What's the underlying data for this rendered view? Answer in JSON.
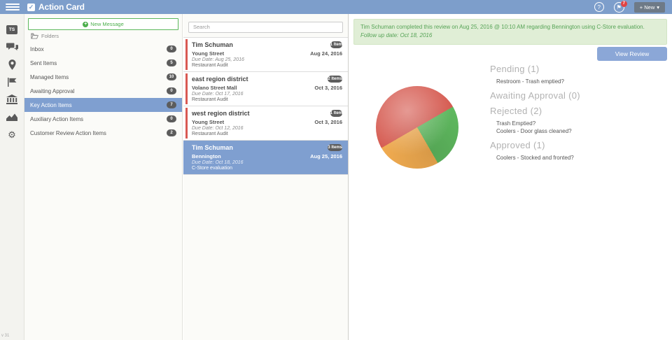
{
  "header": {
    "app_title": "Action Card",
    "new_button_label": "+ New",
    "notification_count": "7"
  },
  "icons": {
    "check": "✓",
    "help": "?",
    "flag": "⚑",
    "gear": "⚙",
    "caret_down": "▾",
    "plus": "+"
  },
  "sidebar": {
    "avatar_initials": "TS"
  },
  "folders_panel": {
    "new_message_label": "New Message",
    "folders_header": "Folders",
    "items": [
      {
        "label": "Inbox",
        "count": "0",
        "selected": false
      },
      {
        "label": "Sent Items",
        "count": "5",
        "selected": false
      },
      {
        "label": "Managed Items",
        "count": "10",
        "selected": false
      },
      {
        "label": "Awaiting Approval",
        "count": "0",
        "selected": false
      },
      {
        "label": "Key Action Items",
        "count": "7",
        "selected": true
      },
      {
        "label": "Auxiliary Action Items",
        "count": "0",
        "selected": false
      },
      {
        "label": "Customer Review Action Items",
        "count": "2",
        "selected": false
      }
    ]
  },
  "messages_panel": {
    "search_placeholder": "Search",
    "items": [
      {
        "sender": "Tim Schuman",
        "badge": "1 Item",
        "location": "Young Street",
        "date": "Aug 24, 2016",
        "due": "Due Date: Aug 25, 2016",
        "type": "Restaurant Audit",
        "selected": false
      },
      {
        "sender": "east region district",
        "badge": "2 Items",
        "location": "Volano Street Mall",
        "date": "Oct 3, 2016",
        "due": "Due Date: Oct 17, 2016",
        "type": "Restaurant Audit",
        "selected": false
      },
      {
        "sender": "west region district",
        "badge": "1 Item",
        "location": "Young Street",
        "date": "Oct 3, 2016",
        "due": "Due Date: Oct 12, 2016",
        "type": "Restaurant Audit",
        "selected": false
      },
      {
        "sender": "Tim Schuman",
        "badge": "3 Items",
        "location": "Bennington",
        "date": "Aug 25, 2016",
        "due": "Due Date: Oct 18, 2016",
        "type": "C-Store evaluation",
        "selected": true
      }
    ]
  },
  "detail_panel": {
    "banner_line1": "Tim Schuman completed this review on Aug 25, 2016 @ 10:10 AM regarding Bennington using C-Store evaluation.",
    "banner_line2": "Follow up date: Oct 18, 2016",
    "view_review_label": "View Review",
    "chart_data": {
      "type": "pie",
      "labels": [
        "Rejected",
        "Approved",
        "Pending"
      ],
      "values": [
        2,
        1,
        1
      ],
      "colors": [
        "#d65c52",
        "#5fb95f",
        "#f0ab50"
      ],
      "start_angle_deg": 240,
      "legend_position": "none"
    },
    "status_groups": [
      {
        "label": "Pending (1)",
        "items": [
          "Restroom - Trash emptied?"
        ]
      },
      {
        "label": "Awaiting Approval (0)",
        "items": []
      },
      {
        "label": "Rejected (2)",
        "items": [
          "Trash Emptied?",
          "Coolers - Door glass cleaned?"
        ]
      },
      {
        "label": "Approved (1)",
        "items": [
          "Coolers - Stocked and fronted?"
        ]
      }
    ]
  },
  "footer": {
    "version": "v 31"
  },
  "colors": {
    "header_bg": "#7d9ecb",
    "selected_bg": "#7f9fd0",
    "accent_red": "#d95952",
    "accent_green": "#5cb85c",
    "banner_bg": "#e0eed6",
    "banner_text": "#56a356",
    "button_blue": "#8ba7d7",
    "badge_gray": "#5c5c5c",
    "notification_red": "#e04343"
  }
}
